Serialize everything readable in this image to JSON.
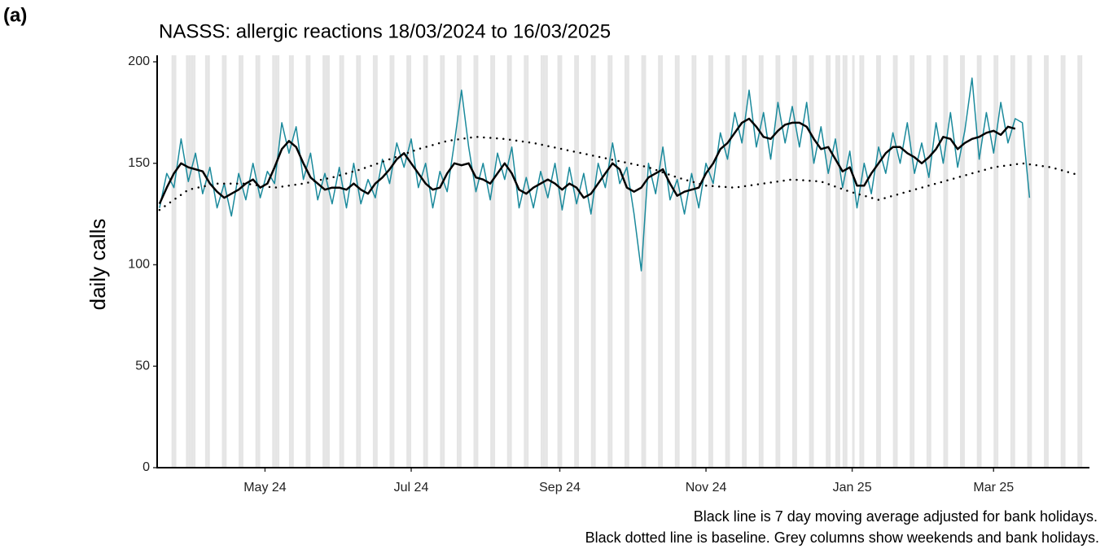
{
  "chart_data": {
    "type": "line",
    "panel_label": "(a)",
    "title": "NASSS: allergic reactions 18/03/2024 to 16/03/2025",
    "ylabel": "daily calls",
    "notes": [
      "Black line is 7 day moving average adjusted for bank holidays.",
      "Black dotted line is baseline. Grey columns show weekends and bank holidays."
    ],
    "xlim": [
      -1,
      388
    ],
    "xticks": [
      {
        "value": 44,
        "label": "May 24"
      },
      {
        "value": 105,
        "label": "Jul 24"
      },
      {
        "value": 167,
        "label": "Sep 24"
      },
      {
        "value": 228,
        "label": "Nov 24"
      },
      {
        "value": 289,
        "label": "Jan 25"
      },
      {
        "value": 348,
        "label": "Mar 25"
      }
    ],
    "ylim": [
      0,
      200
    ],
    "yticks": [
      0,
      50,
      100,
      150,
      200
    ],
    "shade_color": "#e5e5e5",
    "shaded_days": [
      5,
      6,
      11,
      12,
      13,
      14,
      19,
      20,
      26,
      27,
      33,
      34,
      40,
      41,
      47,
      48,
      49,
      54,
      55,
      61,
      62,
      68,
      69,
      70,
      75,
      76,
      82,
      83,
      89,
      90,
      96,
      97,
      103,
      104,
      110,
      111,
      117,
      118,
      124,
      125,
      131,
      132,
      138,
      139,
      145,
      146,
      152,
      153,
      159,
      160,
      161,
      166,
      167,
      173,
      174,
      180,
      181,
      187,
      188,
      194,
      195,
      201,
      202,
      208,
      209,
      215,
      216,
      222,
      223,
      229,
      230,
      236,
      237,
      243,
      244,
      250,
      251,
      257,
      258,
      264,
      265,
      271,
      272,
      278,
      279,
      282,
      283,
      285,
      286,
      289,
      292,
      293,
      299,
      300,
      306,
      307,
      313,
      314,
      320,
      321,
      327,
      328,
      334,
      335,
      341,
      342,
      348,
      349,
      355,
      356,
      362,
      363,
      369,
      370,
      376,
      377,
      383,
      384
    ],
    "series": [
      {
        "color": "#1b8a9c",
        "style": "solid",
        "width": 1.5,
        "x": [
          0,
          3,
          6,
          9,
          12,
          15,
          18,
          21,
          24,
          27,
          30,
          33,
          36,
          39,
          42,
          45,
          48,
          51,
          54,
          57,
          60,
          63,
          66,
          69,
          72,
          75,
          78,
          81,
          84,
          87,
          90,
          93,
          96,
          99,
          102,
          105,
          108,
          111,
          114,
          117,
          120,
          123,
          126,
          129,
          132,
          135,
          138,
          141,
          144,
          147,
          150,
          153,
          156,
          159,
          162,
          165,
          168,
          171,
          174,
          177,
          180,
          183,
          186,
          189,
          192,
          195,
          198,
          201,
          204,
          207,
          210,
          213,
          216,
          219,
          222,
          225,
          228,
          231,
          234,
          237,
          240,
          243,
          246,
          249,
          252,
          255,
          258,
          261,
          264,
          267,
          270,
          273,
          276,
          279,
          282,
          285,
          288,
          291,
          294,
          297,
          300,
          303,
          306,
          309,
          312,
          315,
          318,
          321,
          324,
          327,
          330,
          333,
          336,
          339,
          342,
          345,
          348,
          351,
          354,
          357,
          360,
          363
        ],
        "values": [
          128,
          145,
          138,
          162,
          141,
          155,
          135,
          148,
          128,
          140,
          124,
          145,
          132,
          150,
          133,
          146,
          140,
          170,
          155,
          168,
          142,
          155,
          132,
          145,
          130,
          148,
          128,
          150,
          130,
          142,
          133,
          152,
          140,
          160,
          148,
          162,
          138,
          150,
          128,
          146,
          136,
          160,
          186,
          158,
          136,
          150,
          132,
          155,
          142,
          158,
          128,
          143,
          128,
          146,
          133,
          150,
          127,
          148,
          130,
          145,
          125,
          150,
          138,
          160,
          140,
          148,
          125,
          97,
          150,
          135,
          158,
          132,
          142,
          125,
          145,
          128,
          150,
          140,
          165,
          152,
          175,
          160,
          186,
          158,
          175,
          152,
          180,
          160,
          178,
          158,
          180,
          150,
          168,
          145,
          162,
          138,
          156,
          128,
          150,
          135,
          158,
          145,
          165,
          150,
          170,
          145,
          160,
          143,
          170,
          150,
          175,
          148,
          166,
          192,
          152,
          175,
          155,
          180,
          160,
          172,
          170,
          133
        ]
      },
      {
        "color": "#000000",
        "style": "solid",
        "width": 2.5,
        "x": [
          0,
          3,
          6,
          9,
          12,
          15,
          18,
          21,
          24,
          27,
          30,
          33,
          36,
          39,
          42,
          45,
          48,
          51,
          54,
          57,
          60,
          63,
          66,
          69,
          72,
          75,
          78,
          81,
          84,
          87,
          90,
          93,
          96,
          99,
          102,
          105,
          108,
          111,
          114,
          117,
          120,
          123,
          126,
          129,
          132,
          135,
          138,
          141,
          144,
          147,
          150,
          153,
          156,
          159,
          162,
          165,
          168,
          171,
          174,
          177,
          180,
          183,
          186,
          189,
          192,
          195,
          198,
          201,
          204,
          207,
          210,
          213,
          216,
          219,
          222,
          225,
          228,
          231,
          234,
          237,
          240,
          243,
          246,
          249,
          252,
          255,
          258,
          261,
          264,
          267,
          270,
          273,
          276,
          279,
          282,
          285,
          288,
          291,
          294,
          297,
          300,
          303,
          306,
          309,
          312,
          315,
          318,
          321,
          324,
          327,
          330,
          333,
          336,
          339,
          342,
          345,
          348,
          351,
          354,
          357
        ],
        "values": [
          130,
          138,
          145,
          150,
          148,
          147,
          146,
          140,
          136,
          133,
          135,
          137,
          140,
          142,
          138,
          140,
          148,
          157,
          161,
          158,
          150,
          143,
          140,
          137,
          138,
          138,
          137,
          140,
          137,
          135,
          140,
          143,
          147,
          152,
          155,
          150,
          145,
          140,
          137,
          138,
          145,
          150,
          149,
          150,
          143,
          142,
          140,
          145,
          150,
          145,
          137,
          135,
          138,
          140,
          142,
          140,
          137,
          140,
          138,
          133,
          135,
          140,
          145,
          150,
          147,
          138,
          136,
          138,
          143,
          145,
          147,
          140,
          134,
          136,
          137,
          138,
          145,
          150,
          157,
          160,
          165,
          170,
          172,
          168,
          163,
          162,
          166,
          169,
          170,
          170,
          168,
          162,
          157,
          158,
          152,
          146,
          148,
          139,
          139,
          145,
          150,
          155,
          158,
          158,
          155,
          153,
          150,
          153,
          157,
          163,
          162,
          157,
          160,
          162,
          163,
          165,
          166,
          164,
          168,
          167
        ]
      },
      {
        "color": "#000000",
        "style": "dotted",
        "width": 2.5,
        "x": [
          0,
          12,
          24,
          36,
          48,
          60,
          72,
          84,
          96,
          108,
          120,
          132,
          144,
          156,
          168,
          180,
          192,
          204,
          216,
          228,
          240,
          252,
          264,
          276,
          288,
          300,
          312,
          324,
          336,
          348,
          360,
          372,
          384
        ],
        "values": [
          127,
          137,
          140,
          140,
          138,
          140,
          143,
          147,
          152,
          157,
          161,
          163,
          162,
          160,
          157,
          154,
          151,
          148,
          143,
          139,
          138,
          140,
          142,
          141,
          136,
          132,
          136,
          140,
          144,
          148,
          150,
          148,
          144
        ]
      }
    ]
  }
}
